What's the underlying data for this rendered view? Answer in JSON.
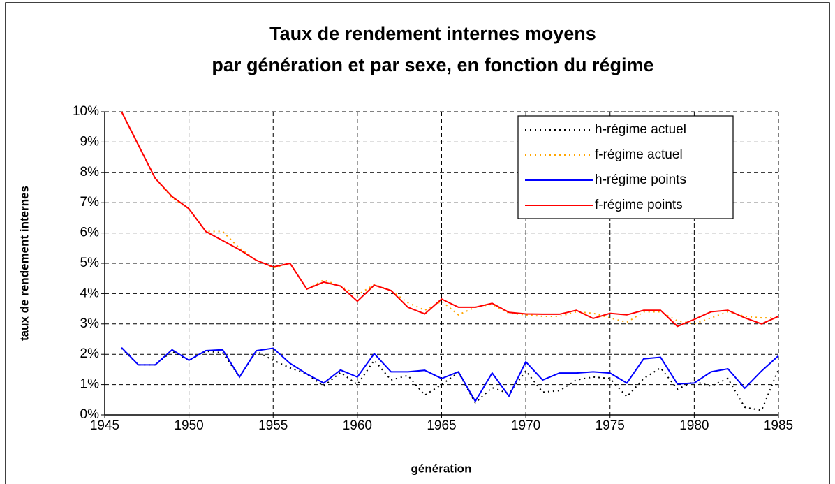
{
  "chart_data": {
    "type": "line",
    "title": [
      "Taux de rendement internes moyens",
      "par génération et par sexe, en fonction du régime"
    ],
    "xlabel": "génération",
    "ylabel": "taux de rendement internes",
    "x": [
      1946,
      1947,
      1948,
      1949,
      1950,
      1951,
      1952,
      1953,
      1954,
      1955,
      1956,
      1957,
      1958,
      1959,
      1960,
      1961,
      1962,
      1963,
      1964,
      1965,
      1966,
      1967,
      1968,
      1969,
      1970,
      1971,
      1972,
      1973,
      1974,
      1975,
      1976,
      1977,
      1978,
      1979,
      1980,
      1981,
      1982,
      1983,
      1984,
      1985
    ],
    "xlim": [
      1945,
      1985
    ],
    "xticks": [
      1945,
      1950,
      1955,
      1960,
      1965,
      1970,
      1975,
      1980,
      1985
    ],
    "ylim": [
      0,
      10
    ],
    "yticks": [
      {
        "value": 0,
        "label": "0%"
      },
      {
        "value": 1,
        "label": "1%"
      },
      {
        "value": 2,
        "label": "2%"
      },
      {
        "value": 3,
        "label": "3%"
      },
      {
        "value": 4,
        "label": "4%"
      },
      {
        "value": 5,
        "label": "5%"
      },
      {
        "value": 6,
        "label": "6%"
      },
      {
        "value": 7,
        "label": "7%"
      },
      {
        "value": 8,
        "label": "8%"
      },
      {
        "value": 9,
        "label": "9%"
      },
      {
        "value": 10,
        "label": "10%"
      }
    ],
    "grid": true,
    "legend": "upper right",
    "series": [
      {
        "name": "h-régime actuel",
        "color": "#000000",
        "style": "dotted",
        "values": [
          2.2,
          1.65,
          1.65,
          2.1,
          1.8,
          2.1,
          2.05,
          1.25,
          2.1,
          1.8,
          1.55,
          1.35,
          0.95,
          1.4,
          1.0,
          1.8,
          1.15,
          1.3,
          0.65,
          1.0,
          1.4,
          0.4,
          0.9,
          0.7,
          1.45,
          0.75,
          0.8,
          1.15,
          1.25,
          1.2,
          0.6,
          1.2,
          1.55,
          0.85,
          1.1,
          0.95,
          1.2,
          0.25,
          0.15,
          1.5
        ]
      },
      {
        "name": "f-régime actuel",
        "color": "#ffa500",
        "style": "dotted",
        "values": [
          10.0,
          8.9,
          7.8,
          7.15,
          6.8,
          6.05,
          6.05,
          5.5,
          5.1,
          4.85,
          5.0,
          4.15,
          4.45,
          4.25,
          3.95,
          4.3,
          4.1,
          3.7,
          3.45,
          3.75,
          3.3,
          3.55,
          3.65,
          3.35,
          3.3,
          3.25,
          3.25,
          3.4,
          3.35,
          3.2,
          3.05,
          3.4,
          3.4,
          3.1,
          3.0,
          3.2,
          3.4,
          3.25,
          3.2,
          3.2
        ]
      },
      {
        "name": "h-régime points",
        "color": "#0000ff",
        "style": "solid",
        "values": [
          2.22,
          1.65,
          1.65,
          2.15,
          1.8,
          2.12,
          2.15,
          1.25,
          2.12,
          2.2,
          1.7,
          1.35,
          1.05,
          1.48,
          1.25,
          2.02,
          1.42,
          1.42,
          1.47,
          1.2,
          1.42,
          0.45,
          1.38,
          0.62,
          1.75,
          1.15,
          1.38,
          1.38,
          1.42,
          1.38,
          1.05,
          1.85,
          1.9,
          1.02,
          1.05,
          1.42,
          1.52,
          0.88,
          1.45,
          1.95
        ]
      },
      {
        "name": "f-régime points",
        "color": "#ff0000",
        "style": "solid",
        "values": [
          10.0,
          8.9,
          7.8,
          7.2,
          6.8,
          6.05,
          5.75,
          5.45,
          5.1,
          4.88,
          5.0,
          4.15,
          4.38,
          4.25,
          3.75,
          4.28,
          4.1,
          3.55,
          3.33,
          3.82,
          3.55,
          3.55,
          3.68,
          3.38,
          3.33,
          3.32,
          3.32,
          3.45,
          3.18,
          3.35,
          3.3,
          3.45,
          3.45,
          2.92,
          3.15,
          3.4,
          3.45,
          3.2,
          3.0,
          3.25
        ]
      }
    ]
  }
}
